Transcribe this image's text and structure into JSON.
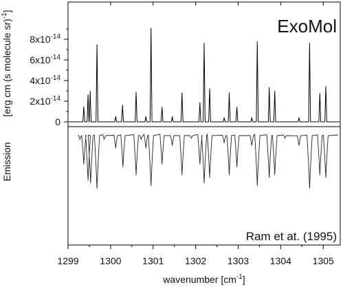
{
  "chart_data": {
    "type": "line",
    "xlabel": "wavenumber [cm",
    "xlabel_sup": "-1",
    "xlabel_close": "]",
    "ylabel_outer": "Emission",
    "ylabel_top": "[erg cm (s molecule sr)",
    "ylabel_top_sup": "-1",
    "ylabel_top_close": "]",
    "xlim": [
      1299,
      1305.4
    ],
    "top_panel_ylim": [
      0,
      9.3e-14
    ],
    "x_ticks": [
      1299,
      1300,
      1301,
      1302,
      1303,
      1304,
      1305
    ],
    "x_tick_labels": [
      "1299",
      "1300",
      "1301",
      "1302",
      "1303",
      "1304",
      "1305"
    ],
    "y_ticks": [
      {
        "value": 0,
        "label_main": "0",
        "label_sup": ""
      },
      {
        "value": 2e-14,
        "label_main": "2x10",
        "label_sup": "-14"
      },
      {
        "value": 4e-14,
        "label_main": "4x10",
        "label_sup": "-14"
      },
      {
        "value": 6e-14,
        "label_main": "6x10",
        "label_sup": "-14"
      },
      {
        "value": 8e-14,
        "label_main": "8x10",
        "label_sup": "-14"
      }
    ],
    "accent_color": "#e8141a",
    "series": [
      {
        "name": "ExoMol",
        "panel": "top",
        "color": "#000000",
        "peaks": [
          {
            "x": 1299.37,
            "y": 1.45e-14
          },
          {
            "x": 1299.47,
            "y": 2.6e-14
          },
          {
            "x": 1299.52,
            "y": 2.95e-14
          },
          {
            "x": 1299.68,
            "y": 7.45e-14
          },
          {
            "x": 1300.12,
            "y": 5e-15
          },
          {
            "x": 1300.28,
            "y": 1.6e-14
          },
          {
            "x": 1300.6,
            "y": 2.85e-14
          },
          {
            "x": 1300.83,
            "y": 5e-15
          },
          {
            "x": 1300.95,
            "y": 9.05e-14
          },
          {
            "x": 1301.21,
            "y": 1.4e-14
          },
          {
            "x": 1301.45,
            "y": 5e-15
          },
          {
            "x": 1301.68,
            "y": 2.8e-14
          },
          {
            "x": 1302.1,
            "y": 1.85e-14
          },
          {
            "x": 1302.2,
            "y": 7.6e-14
          },
          {
            "x": 1302.33,
            "y": 3.2e-14
          },
          {
            "x": 1302.67,
            "y": 4e-15
          },
          {
            "x": 1302.79,
            "y": 2.8e-14
          },
          {
            "x": 1302.97,
            "y": 1.4e-14
          },
          {
            "x": 1303.32,
            "y": 4e-15
          },
          {
            "x": 1303.45,
            "y": 7.75e-14
          },
          {
            "x": 1303.73,
            "y": 3.3e-14
          },
          {
            "x": 1303.86,
            "y": 2.95e-14
          },
          {
            "x": 1304.43,
            "y": 4e-15
          },
          {
            "x": 1304.68,
            "y": 7.6e-14
          },
          {
            "x": 1304.92,
            "y": 2.75e-14
          },
          {
            "x": 1305.06,
            "y": 3.4e-14
          }
        ]
      },
      {
        "name": "Ram et at. (1995)",
        "panel": "bottom",
        "color": "#222222",
        "dips": [
          {
            "x": 1299.1,
            "depth": 0.1
          },
          {
            "x": 1299.28,
            "depth": 0.08
          },
          {
            "x": 1299.37,
            "depth": 0.55
          },
          {
            "x": 1299.47,
            "depth": 0.85
          },
          {
            "x": 1299.53,
            "depth": 0.9
          },
          {
            "x": 1299.68,
            "depth": 1.0
          },
          {
            "x": 1299.85,
            "depth": 0.08
          },
          {
            "x": 1300.12,
            "depth": 0.25
          },
          {
            "x": 1300.29,
            "depth": 0.6
          },
          {
            "x": 1300.6,
            "depth": 0.75
          },
          {
            "x": 1300.72,
            "depth": 0.08
          },
          {
            "x": 1300.83,
            "depth": 0.25
          },
          {
            "x": 1300.95,
            "depth": 0.95
          },
          {
            "x": 1301.21,
            "depth": 0.55
          },
          {
            "x": 1301.45,
            "depth": 0.2
          },
          {
            "x": 1301.68,
            "depth": 0.75
          },
          {
            "x": 1301.9,
            "depth": 0.06
          },
          {
            "x": 1302.1,
            "depth": 0.55
          },
          {
            "x": 1302.2,
            "depth": 0.9
          },
          {
            "x": 1302.33,
            "depth": 0.8
          },
          {
            "x": 1302.67,
            "depth": 0.15
          },
          {
            "x": 1302.79,
            "depth": 0.75
          },
          {
            "x": 1302.97,
            "depth": 0.6
          },
          {
            "x": 1303.32,
            "depth": 0.2
          },
          {
            "x": 1303.45,
            "depth": 0.95
          },
          {
            "x": 1303.73,
            "depth": 0.8
          },
          {
            "x": 1303.86,
            "depth": 0.75
          },
          {
            "x": 1304.1,
            "depth": 0.06
          },
          {
            "x": 1304.43,
            "depth": 0.2
          },
          {
            "x": 1304.68,
            "depth": 1.0
          },
          {
            "x": 1304.92,
            "depth": 0.75
          },
          {
            "x": 1305.06,
            "depth": 0.8
          }
        ]
      }
    ],
    "legend": {
      "top_label": "ExoMol",
      "bottom_label": "Ram et at. (1995)"
    }
  }
}
